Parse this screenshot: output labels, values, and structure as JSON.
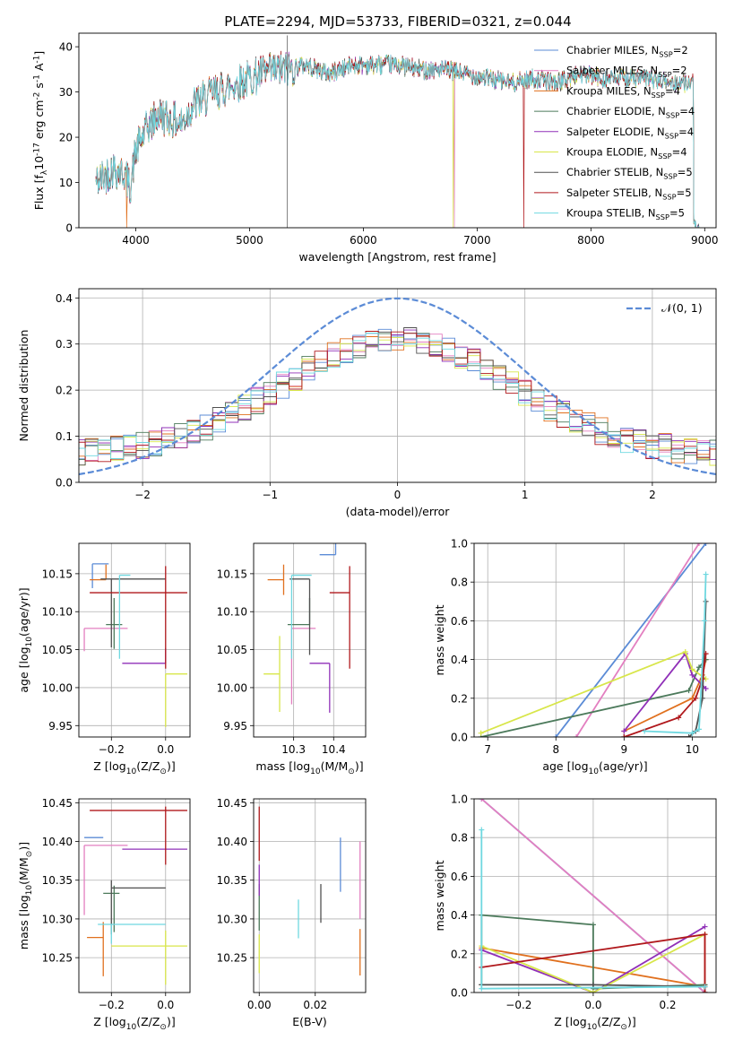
{
  "title": "PLATE=2294, MJD=53733, FIBERID=0321, z=0.044",
  "series": [
    {
      "name": "Chabrier MILES, N$_{SSP}$=2",
      "color": "#5b8bd6"
    },
    {
      "name": "Salpeter MILES, N$_{SSP}$=2",
      "color": "#e37fc0"
    },
    {
      "name": "Kroupa MILES, N$_{SSP}$=4",
      "color": "#e0701e"
    },
    {
      "name": "Chabrier ELODIE, N$_{SSP}$=4",
      "color": "#4c7a5b"
    },
    {
      "name": "Salpeter ELODIE, N$_{SSP}$=4",
      "color": "#9030b8"
    },
    {
      "name": "Kroupa ELODIE, N$_{SSP}$=4",
      "color": "#d8e64a"
    },
    {
      "name": "Chabrier STELIB, N$_{SSP}$=5",
      "color": "#505050"
    },
    {
      "name": "Salpeter STELIB, N$_{SSP}$=5",
      "color": "#b0181c"
    },
    {
      "name": "Kroupa STELIB, N$_{SSP}$=5",
      "color": "#6fd8e0"
    }
  ],
  "chart_data": [
    {
      "id": "spectrum",
      "type": "line",
      "xlabel": "wavelength [Angstrom, rest frame]",
      "ylabel": "Flux [f$_{\\lambda}$10$^{-17}$ erg cm$^{-2}$ s$^{-1}$ A$^{-1}$]",
      "xlim": [
        3500,
        9100
      ],
      "ylim": [
        0,
        43
      ],
      "xticks": [
        4000,
        5000,
        6000,
        7000,
        8000,
        9000
      ],
      "yticks": [
        0,
        10,
        20,
        30,
        40
      ],
      "grid": false,
      "legend": "top-right",
      "continuum": {
        "x": [
          3650,
          3700,
          3800,
          3900,
          3950,
          4000,
          4100,
          4200,
          4300,
          4400,
          4500,
          4700,
          4900,
          5100,
          5300,
          5500,
          5700,
          5900,
          6100,
          6300,
          6500,
          6700,
          6900,
          7100,
          7300,
          7500,
          7700,
          7900,
          8100,
          8300,
          8500,
          8700,
          8900
        ],
        "y": [
          10,
          11,
          13,
          12,
          9,
          17,
          22,
          25,
          24,
          23,
          27,
          30,
          32,
          34,
          35,
          36,
          34,
          36,
          36,
          36,
          35,
          35,
          34,
          33,
          32,
          33,
          32,
          34,
          33,
          33,
          33,
          32,
          32
        ]
      }
    },
    {
      "id": "residuals",
      "type": "line",
      "xlabel": "(data-model)/error",
      "ylabel": "Normed distribution",
      "xlim": [
        -2.5,
        2.5
      ],
      "ylim": [
        0,
        0.42
      ],
      "xticks": [
        -2,
        -1,
        0,
        1,
        2
      ],
      "yticks": [
        0.0,
        0.1,
        0.2,
        0.3,
        0.4
      ],
      "grid": true,
      "legend": "top-right",
      "reference": {
        "label": "$\\mathcal{N}(0, 1)$",
        "color": "#5b8bd6"
      }
    },
    {
      "id": "z-age",
      "type": "scatter",
      "xlabel": "Z [log$_{10}$(Z/Z$_\\odot$)]",
      "ylabel": "age  [log$_{10}$(age/yr)]",
      "xlim": [
        -0.32,
        0.09
      ],
      "ylim": [
        9.935,
        10.19
      ],
      "xticks": [
        -0.2,
        0.0
      ],
      "yticks": [
        9.95,
        10.0,
        10.05,
        10.1,
        10.15
      ],
      "grid": true,
      "points": [
        {
          "x": -0.27,
          "y": 10.163,
          "dx": [
            0.0,
            0.06
          ],
          "dy": [
            0.032,
            0.0
          ],
          "s": 0
        },
        {
          "x": -0.3,
          "y": 10.078,
          "dx": [
            0.0,
            0.16
          ],
          "dy": [
            0.03,
            0.0
          ],
          "s": 1
        },
        {
          "x": -0.22,
          "y": 10.142,
          "dx": [
            0.06,
            0.0
          ],
          "dy": [
            0.0,
            0.02
          ],
          "s": 2
        },
        {
          "x": -0.19,
          "y": 10.083,
          "dx": [
            0.03,
            0.03
          ],
          "dy": [
            0.032,
            0.035
          ],
          "s": 3
        },
        {
          "x": 0.0,
          "y": 10.032,
          "dx": [
            0.16,
            0.0
          ],
          "dy": [
            0.0,
            0.02
          ],
          "s": 4
        },
        {
          "x": 0.0,
          "y": 10.018,
          "dx": [
            0.0,
            0.08
          ],
          "dy": [
            0.07,
            0.0
          ],
          "s": 5
        },
        {
          "x": -0.2,
          "y": 10.143,
          "dx": [
            0.04,
            0.2
          ],
          "dy": [
            0.09,
            0.0
          ],
          "s": 6
        },
        {
          "x": 0.0,
          "y": 10.125,
          "dx": [
            0.28,
            0.08
          ],
          "dy": [
            0.1,
            0.035
          ],
          "s": 7
        },
        {
          "x": -0.17,
          "y": 10.148,
          "dx": [
            0.0,
            0.04
          ],
          "dy": [
            0.11,
            0.0
          ],
          "s": 8
        }
      ]
    },
    {
      "id": "mass-age",
      "type": "scatter",
      "xlabel": "mass [log$_{10}$(M/M$_\\odot$)]",
      "ylabel": "",
      "xlim": [
        10.2,
        10.48
      ],
      "ylim": [
        9.935,
        10.19
      ],
      "xticks": [
        10.3,
        10.4
      ],
      "yticks": [
        9.95,
        10.0,
        10.05,
        10.1,
        10.15
      ],
      "grid": true,
      "points": [
        {
          "x": 10.405,
          "y": 10.175,
          "dx": [
            0.04,
            0.0
          ],
          "dy": [
            0.0,
            0.04
          ],
          "s": 0
        },
        {
          "x": 10.295,
          "y": 10.078,
          "dx": [
            0.0,
            0.06
          ],
          "dy": [
            0.1,
            0.0
          ],
          "s": 1
        },
        {
          "x": 10.275,
          "y": 10.142,
          "dx": [
            0.04,
            0.0
          ],
          "dy": [
            0.02,
            0.02
          ],
          "s": 2
        },
        {
          "x": 10.34,
          "y": 10.083,
          "dx": [
            0.055,
            0.0
          ],
          "dy": [
            0.0,
            0.035
          ],
          "s": 3
        },
        {
          "x": 10.39,
          "y": 10.032,
          "dx": [
            0.05,
            0.0
          ],
          "dy": [
            0.065,
            0.0
          ],
          "s": 4
        },
        {
          "x": 10.265,
          "y": 10.018,
          "dx": [
            0.04,
            0.0
          ],
          "dy": [
            0.05,
            0.05
          ],
          "s": 5
        },
        {
          "x": 10.34,
          "y": 10.143,
          "dx": [
            0.05,
            0.0
          ],
          "dy": [
            0.1,
            0.0
          ],
          "s": 6
        },
        {
          "x": 10.44,
          "y": 10.125,
          "dx": [
            0.05,
            0.0
          ],
          "dy": [
            0.1,
            0.035
          ],
          "s": 7
        },
        {
          "x": 10.295,
          "y": 10.148,
          "dx": [
            0.0,
            0.05
          ],
          "dy": [
            0.11,
            0.0
          ],
          "s": 8
        }
      ]
    },
    {
      "id": "age-weight",
      "type": "line",
      "xlabel": "age  [log$_{10}$(age/yr)]",
      "ylabel": "mass weight",
      "xlim": [
        6.8,
        10.35
      ],
      "ylim": [
        0,
        1.0
      ],
      "xticks": [
        7,
        8,
        9,
        10
      ],
      "yticks": [
        0.0,
        0.2,
        0.4,
        0.6,
        0.8,
        1.0
      ],
      "grid": true,
      "series": [
        {
          "s": 0,
          "x": [
            8.0,
            10.2
          ],
          "y": [
            0.0,
            1.0
          ]
        },
        {
          "s": 1,
          "x": [
            8.3,
            10.1
          ],
          "y": [
            0.0,
            1.0
          ]
        },
        {
          "s": 2,
          "x": [
            9.0,
            10.0,
            10.15,
            10.2
          ],
          "y": [
            0.03,
            0.2,
            0.32,
            0.4
          ]
        },
        {
          "s": 3,
          "x": [
            6.9,
            9.95,
            10.1,
            10.2
          ],
          "y": [
            0.0,
            0.24,
            0.36,
            0.4
          ]
        },
        {
          "s": 4,
          "x": [
            9.0,
            9.9,
            10.0,
            10.2
          ],
          "y": [
            0.03,
            0.43,
            0.32,
            0.25
          ]
        },
        {
          "s": 5,
          "x": [
            6.9,
            9.9,
            10.0,
            10.2
          ],
          "y": [
            0.02,
            0.44,
            0.35,
            0.3
          ]
        },
        {
          "s": 6,
          "x": [
            9.0,
            9.95,
            10.05,
            10.15,
            10.2
          ],
          "y": [
            0.0,
            0.0,
            0.03,
            0.2,
            0.7
          ]
        },
        {
          "s": 7,
          "x": [
            9.0,
            9.8,
            10.05,
            10.15,
            10.2
          ],
          "y": [
            0.0,
            0.1,
            0.2,
            0.3,
            0.43
          ]
        },
        {
          "s": 8,
          "x": [
            9.3,
            10.0,
            10.1,
            10.18,
            10.2
          ],
          "y": [
            0.03,
            0.02,
            0.04,
            0.6,
            0.84
          ]
        }
      ]
    },
    {
      "id": "z-mass",
      "type": "scatter",
      "xlabel": "Z [log$_{10}$(Z/Z$_\\odot$)]",
      "ylabel": "mass [log$_{10}$(M/M$_\\odot$)]",
      "xlim": [
        -0.32,
        0.09
      ],
      "ylim": [
        10.205,
        10.455
      ],
      "xticks": [
        -0.2,
        0.0
      ],
      "yticks": [
        10.25,
        10.3,
        10.35,
        10.4,
        10.45
      ],
      "grid": true,
      "points": [
        {
          "x": -0.3,
          "y": 10.405,
          "dx": [
            0.0,
            0.07
          ],
          "dy": [
            0.0,
            0.0
          ],
          "s": 0
        },
        {
          "x": -0.3,
          "y": 10.395,
          "dx": [
            0.0,
            0.16
          ],
          "dy": [
            0.09,
            0.0
          ],
          "s": 1
        },
        {
          "x": -0.23,
          "y": 10.276,
          "dx": [
            0.06,
            0.0
          ],
          "dy": [
            0.05,
            0.02
          ],
          "s": 2
        },
        {
          "x": -0.19,
          "y": 10.333,
          "dx": [
            0.04,
            0.02
          ],
          "dy": [
            0.05,
            0.01
          ],
          "s": 3
        },
        {
          "x": 0.0,
          "y": 10.39,
          "dx": [
            0.16,
            0.08
          ],
          "dy": [
            0.0,
            0.0
          ],
          "s": 4
        },
        {
          "x": 0.0,
          "y": 10.265,
          "dx": [
            0.2,
            0.08
          ],
          "dy": [
            0.05,
            0.02
          ],
          "s": 5
        },
        {
          "x": -0.2,
          "y": 10.34,
          "dx": [
            0.0,
            0.2
          ],
          "dy": [
            0.06,
            0.01
          ],
          "s": 6
        },
        {
          "x": 0.0,
          "y": 10.44,
          "dx": [
            0.28,
            0.08
          ],
          "dy": [
            0.07,
            0.005
          ],
          "s": 7
        },
        {
          "x": -0.2,
          "y": 10.293,
          "dx": [
            0.05,
            0.2
          ],
          "dy": [
            0.025,
            0.0
          ],
          "s": 8
        }
      ]
    },
    {
      "id": "ebv-mass",
      "type": "scatter",
      "xlabel": "E(B-V)",
      "ylabel": "",
      "xlim": [
        -0.002,
        0.038
      ],
      "ylim": [
        10.205,
        10.455
      ],
      "xticks": [
        0.0,
        0.02
      ],
      "yticks": [
        10.25,
        10.3,
        10.35,
        10.4,
        10.45
      ],
      "grid": true,
      "points": [
        {
          "x": 0.029,
          "y": 10.37,
          "dx": [
            0,
            0
          ],
          "dy": [
            0.035,
            0.035
          ],
          "s": 0
        },
        {
          "x": 0.036,
          "y": 10.35,
          "dx": [
            0,
            0
          ],
          "dy": [
            0.05,
            0.05
          ],
          "s": 1
        },
        {
          "x": 0.036,
          "y": 10.257,
          "dx": [
            0,
            0
          ],
          "dy": [
            0.03,
            0.03
          ],
          "s": 2
        },
        {
          "x": 0.0,
          "y": 10.315,
          "dx": [
            0,
            0
          ],
          "dy": [
            0.03,
            0.03
          ],
          "s": 3
        },
        {
          "x": 0.0,
          "y": 10.35,
          "dx": [
            0,
            0
          ],
          "dy": [
            0.02,
            0.02
          ],
          "s": 4
        },
        {
          "x": 0.0,
          "y": 10.255,
          "dx": [
            0,
            0
          ],
          "dy": [
            0.025,
            0.025
          ],
          "s": 5
        },
        {
          "x": 0.022,
          "y": 10.32,
          "dx": [
            0,
            0
          ],
          "dy": [
            0.025,
            0.025
          ],
          "s": 6
        },
        {
          "x": 0.0,
          "y": 10.41,
          "dx": [
            0,
            0
          ],
          "dy": [
            0.035,
            0.035
          ],
          "s": 7
        },
        {
          "x": 0.014,
          "y": 10.3,
          "dx": [
            0,
            0
          ],
          "dy": [
            0.025,
            0.025
          ],
          "s": 8
        }
      ]
    },
    {
      "id": "z-weight",
      "type": "line",
      "xlabel": "Z [log$_{10}$(Z/Z$_\\odot$)]",
      "ylabel": "mass weight",
      "xlim": [
        -0.32,
        0.33
      ],
      "ylim": [
        0,
        1.0
      ],
      "xticks": [
        -0.2,
        0.0,
        0.2
      ],
      "yticks": [
        0.0,
        0.2,
        0.4,
        0.6,
        0.8,
        1.0
      ],
      "grid": true,
      "series": [
        {
          "s": 0,
          "x": [
            -0.3,
            0.3
          ],
          "y": [
            1.0,
            0.0
          ]
        },
        {
          "s": 1,
          "x": [
            -0.3,
            0.3
          ],
          "y": [
            1.0,
            0.0
          ]
        },
        {
          "s": 2,
          "x": [
            -0.3,
            0.3,
            0.3
          ],
          "y": [
            0.23,
            0.03,
            0.3
          ]
        },
        {
          "s": 3,
          "x": [
            -0.3,
            -0.3,
            0.0,
            0.0,
            0.3
          ],
          "y": [
            0.04,
            0.4,
            0.35,
            0.02,
            0.04
          ]
        },
        {
          "s": 4,
          "x": [
            -0.3,
            0.0,
            0.3
          ],
          "y": [
            0.22,
            0.0,
            0.34
          ]
        },
        {
          "s": 5,
          "x": [
            -0.3,
            0.0,
            0.3
          ],
          "y": [
            0.24,
            0.0,
            0.3
          ]
        },
        {
          "s": 6,
          "x": [
            -0.3,
            0.0,
            0.3,
            0.3
          ],
          "y": [
            0.04,
            0.04,
            0.03,
            0.0
          ]
        },
        {
          "s": 7,
          "x": [
            -0.3,
            0.3,
            0.3
          ],
          "y": [
            0.13,
            0.3,
            0.0
          ]
        },
        {
          "s": 8,
          "x": [
            -0.3,
            -0.3,
            0.3
          ],
          "y": [
            0.84,
            0.02,
            0.03
          ]
        }
      ]
    }
  ]
}
